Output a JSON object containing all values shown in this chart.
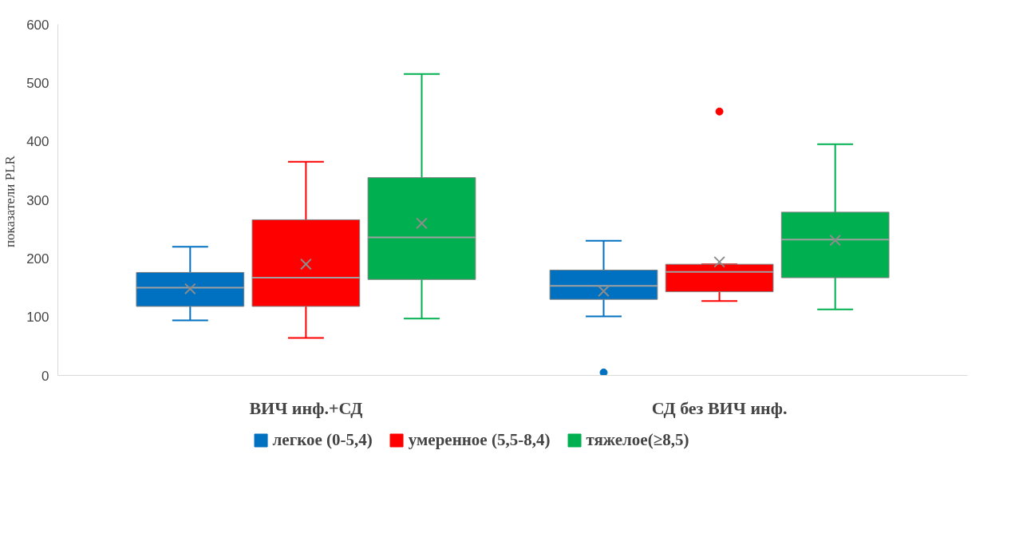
{
  "chart_data": {
    "type": "box",
    "ylabel": "показатели  PLR",
    "categories": [
      "ВИЧ инф.+СД",
      "СД без ВИЧ инф."
    ],
    "ylim": [
      0,
      600
    ],
    "yticks": [
      0,
      100,
      200,
      300,
      400,
      500,
      600
    ],
    "grid": false,
    "legend": "bottom",
    "series": [
      {
        "name": "легкое (0-5,4)",
        "color": "#0070c0",
        "boxes": [
          {
            "low": 94,
            "q1": 118,
            "median": 150,
            "q3": 176,
            "high": 220,
            "mean": 148
          },
          {
            "low": 101,
            "q1": 130,
            "median": 153,
            "q3": 180,
            "high": 230,
            "mean": 144,
            "outliers": [
              5
            ]
          }
        ]
      },
      {
        "name": "умеренное (5,5-8,4)",
        "color": "#ff0000",
        "boxes": [
          {
            "low": 64,
            "q1": 118,
            "median": 167,
            "q3": 266,
            "high": 365,
            "mean": 190
          },
          {
            "low": 127,
            "q1": 143,
            "median": 177,
            "q3": 190,
            "high": 190,
            "mean": 194,
            "outliers": [
              451
            ]
          }
        ]
      },
      {
        "name": "тяжелое(≥8,5)",
        "color": "#00b050",
        "boxes": [
          {
            "low": 97,
            "q1": 164,
            "median": 236,
            "q3": 338,
            "high": 515,
            "mean": 260
          },
          {
            "low": 113,
            "q1": 167,
            "median": 232,
            "q3": 279,
            "high": 395,
            "mean": 231
          }
        ]
      }
    ]
  }
}
